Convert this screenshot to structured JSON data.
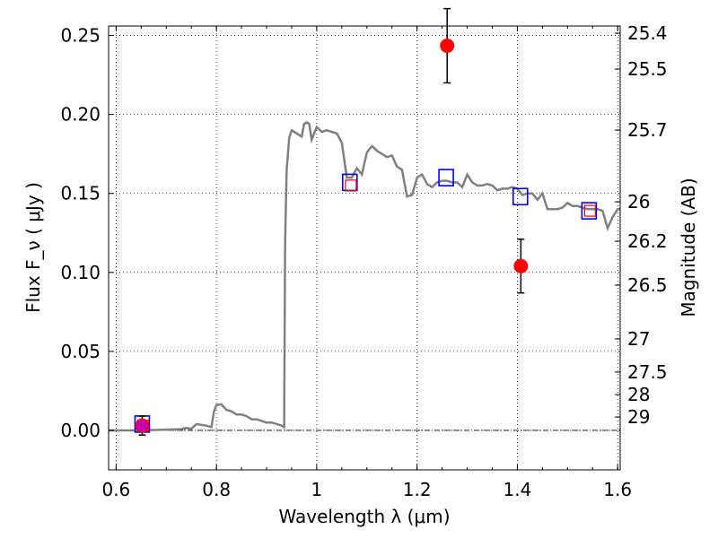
{
  "chart_data": {
    "type": "scatter",
    "xlabel": "Wavelength  λ (μm)",
    "ylabel": "Flux  F_ν  ( μJy )",
    "y2label": "Magnitude (AB)",
    "xlim": [
      0.585,
      1.605
    ],
    "ylim": [
      -0.025,
      0.256
    ],
    "grid": true,
    "x_ticks": [
      0.6,
      0.8,
      1.0,
      1.2,
      1.4,
      1.6
    ],
    "x_tick_labels": [
      "0.6",
      "0.8",
      "1",
      "1.2",
      "1.4",
      "1.6"
    ],
    "y_ticks": [
      0.0,
      0.05,
      0.1,
      0.15,
      0.2,
      0.25
    ],
    "y_tick_labels": [
      "0.00",
      "0.05",
      "0.10",
      "0.15",
      "0.20",
      "0.25"
    ],
    "y2_ticks": [
      25.4,
      25.5,
      25.7,
      26,
      26.2,
      26.5,
      27,
      27.5,
      28,
      29
    ],
    "y2_tick_labels": [
      "25.4",
      "25.5",
      "25.7",
      "26",
      "26.2",
      "26.5",
      "27",
      "27.5",
      "28",
      "29"
    ],
    "model_sed": {
      "color": "#808080",
      "x": [
        0.585,
        0.6,
        0.65,
        0.7,
        0.73,
        0.74,
        0.75,
        0.76,
        0.77,
        0.78,
        0.79,
        0.795,
        0.8,
        0.81,
        0.82,
        0.83,
        0.84,
        0.85,
        0.86,
        0.87,
        0.88,
        0.89,
        0.9,
        0.91,
        0.92,
        0.93,
        0.935,
        0.937,
        0.94,
        0.945,
        0.95,
        0.96,
        0.97,
        0.975,
        0.98,
        0.985,
        0.99,
        1.0,
        1.01,
        1.02,
        1.03,
        1.04,
        1.05,
        1.06,
        1.07,
        1.08,
        1.09,
        1.1,
        1.11,
        1.12,
        1.13,
        1.14,
        1.15,
        1.16,
        1.17,
        1.18,
        1.19,
        1.2,
        1.21,
        1.22,
        1.23,
        1.24,
        1.25,
        1.26,
        1.27,
        1.28,
        1.29,
        1.3,
        1.31,
        1.32,
        1.33,
        1.34,
        1.35,
        1.36,
        1.37,
        1.38,
        1.39,
        1.4,
        1.41,
        1.42,
        1.43,
        1.44,
        1.45,
        1.46,
        1.47,
        1.48,
        1.49,
        1.5,
        1.51,
        1.52,
        1.53,
        1.54,
        1.55,
        1.56,
        1.57,
        1.58,
        1.59,
        1.6,
        1.605
      ],
      "y": [
        0.0,
        0.0,
        0.0,
        0.0005,
        0.0008,
        0.0015,
        0.001,
        0.004,
        0.0035,
        0.003,
        0.002,
        0.012,
        0.016,
        0.0165,
        0.013,
        0.012,
        0.01,
        0.01,
        0.009,
        0.007,
        0.007,
        0.006,
        0.005,
        0.005,
        0.004,
        0.003,
        0.002,
        0.12,
        0.165,
        0.185,
        0.19,
        0.188,
        0.186,
        0.194,
        0.195,
        0.194,
        0.184,
        0.192,
        0.189,
        0.19,
        0.189,
        0.188,
        0.182,
        0.16,
        0.16,
        0.166,
        0.162,
        0.176,
        0.18,
        0.177,
        0.175,
        0.173,
        0.174,
        0.167,
        0.165,
        0.148,
        0.149,
        0.16,
        0.162,
        0.156,
        0.154,
        0.157,
        0.158,
        0.158,
        0.157,
        0.157,
        0.154,
        0.162,
        0.157,
        0.155,
        0.155,
        0.156,
        0.155,
        0.152,
        0.153,
        0.153,
        0.154,
        0.153,
        0.149,
        0.15,
        0.15,
        0.146,
        0.15,
        0.14,
        0.14,
        0.14,
        0.141,
        0.144,
        0.142,
        0.142,
        0.141,
        0.14,
        0.14,
        0.14,
        0.139,
        0.128,
        0.135,
        0.14,
        0.14
      ]
    },
    "observed": {
      "color": "#ff0000",
      "points": [
        {
          "x": 0.652,
          "y": 0.003,
          "err_low": 0.006,
          "err_high": 0.006
        },
        {
          "x": 1.26,
          "y": 0.2435,
          "err_low": 0.0235,
          "err_high": 0.0235
        },
        {
          "x": 1.407,
          "y": 0.104,
          "err_low": 0.017,
          "err_high": 0.017
        }
      ]
    },
    "model_photometry_blue": {
      "color": "#0000ff",
      "points": [
        {
          "x": 0.652,
          "y": 0.004
        },
        {
          "x": 1.066,
          "y": 0.157
        },
        {
          "x": 1.258,
          "y": 0.16
        },
        {
          "x": 1.406,
          "y": 0.148
        },
        {
          "x": 1.543,
          "y": 0.139
        }
      ]
    },
    "model_photometry_red": {
      "color": "#ff0000",
      "points": [
        {
          "x": 0.654,
          "y": 0.003
        },
        {
          "x": 1.068,
          "y": 0.155
        },
        {
          "x": 1.545,
          "y": 0.139
        }
      ]
    },
    "purple_marker": {
      "x": 0.652,
      "y": 0.003,
      "color": "#c000c0"
    }
  }
}
